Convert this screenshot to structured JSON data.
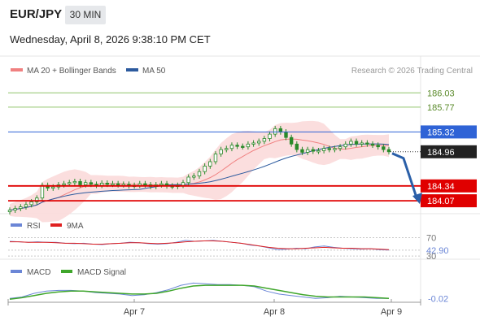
{
  "header": {
    "symbol": "EUR/JPY",
    "timeframe": "30 MIN",
    "datetime": "Wednesday, April 8, 2026 9:38:10 PM CET"
  },
  "legend": {
    "items": [
      {
        "label": "MA 20 + Bollinger Bands",
        "color": "#f08080"
      },
      {
        "label": "MA 50",
        "color": "#2c5a9e"
      }
    ],
    "credit": "Research © 2026 Trading Central"
  },
  "colors": {
    "resistance_green": "#8fc46a",
    "blue_level": "#2f63d6",
    "support_red": "#e00000",
    "candle": "#2a8a2a",
    "band_fill": "#fbdada",
    "arrow": "#2a5fa8",
    "rsi": "#6b86d6",
    "rsi_ma": "#e02020",
    "macd": "#6b86d6",
    "macd_signal": "#3fa62b"
  },
  "chart_data": [
    {
      "type": "candlestick",
      "panel": "price",
      "x_ticks": [
        "Apr 7",
        "Apr 8",
        "Apr 9"
      ],
      "levels": [
        {
          "value": 186.03,
          "label": "186.03",
          "color": "#8fc46a",
          "style": "line"
        },
        {
          "value": 185.77,
          "label": "185.77",
          "color": "#8fc46a",
          "style": "line"
        },
        {
          "value": 185.32,
          "label": "185.32",
          "color": "#2f63d6",
          "style": "box"
        },
        {
          "value": 184.96,
          "label": "184.96",
          "color": "#222222",
          "style": "box-dotted"
        },
        {
          "value": 184.34,
          "label": "184.34",
          "color": "#e00000",
          "style": "box"
        },
        {
          "value": 184.07,
          "label": "184.07",
          "color": "#e00000",
          "style": "box"
        }
      ],
      "close_series": [
        183.9,
        183.93,
        183.96,
        184.0,
        184.05,
        184.12,
        184.35,
        184.3,
        184.32,
        184.36,
        184.38,
        184.4,
        184.42,
        184.36,
        184.4,
        184.37,
        184.35,
        184.39,
        184.37,
        184.38,
        184.36,
        184.37,
        184.34,
        184.35,
        184.38,
        184.36,
        184.33,
        184.36,
        184.38,
        184.34,
        184.33,
        184.35,
        184.4,
        184.5,
        184.52,
        184.6,
        184.7,
        184.78,
        184.92,
        185.0,
        185.02,
        185.08,
        185.06,
        185.05,
        185.1,
        185.12,
        185.15,
        185.2,
        185.28,
        185.38,
        185.32,
        185.22,
        185.1,
        185.0,
        184.95,
        185.0,
        184.97,
        184.98,
        185.02,
        185.0,
        185.02,
        185.05,
        185.1,
        185.15,
        185.1,
        185.12,
        185.1,
        185.08,
        185.05,
        185.0,
        184.96
      ],
      "projection": [
        184.96,
        184.07
      ],
      "ylim": [
        183.85,
        186.3
      ]
    },
    {
      "type": "line",
      "panel": "rsi",
      "series": [
        {
          "name": "RSI",
          "values": [
            62,
            61,
            60,
            61,
            60,
            60,
            58,
            57,
            58,
            56,
            55,
            57,
            58,
            60,
            59,
            57,
            56,
            57,
            60,
            64,
            62,
            63,
            64,
            62,
            60,
            58,
            54,
            52,
            48,
            44,
            45,
            47,
            46,
            50,
            52,
            49,
            47,
            46,
            45,
            46,
            44,
            43
          ]
        },
        {
          "name": "9MA",
          "values": [
            61,
            61,
            60,
            60,
            60,
            59,
            58,
            58,
            57,
            56,
            56,
            57,
            58,
            59,
            59,
            58,
            57,
            58,
            59,
            61,
            62,
            63,
            63,
            62,
            60,
            58,
            55,
            52,
            49,
            47,
            46,
            46,
            47,
            48,
            49,
            48,
            47,
            47,
            46,
            46,
            45,
            44
          ]
        }
      ],
      "levels": [
        {
          "value": 70,
          "label": "70"
        },
        {
          "value": 42.9,
          "label": "42.90"
        },
        {
          "value": 30,
          "label": "30"
        }
      ],
      "ylim": [
        25,
        78
      ]
    },
    {
      "type": "line",
      "panel": "macd",
      "series": [
        {
          "name": "MACD",
          "values": [
            -0.02,
            0.0,
            0.05,
            0.08,
            0.09,
            0.09,
            0.08,
            0.06,
            0.05,
            0.04,
            0.02,
            0.03,
            0.06,
            0.1,
            0.16,
            0.19,
            0.18,
            0.17,
            0.17,
            0.16,
            0.14,
            0.08,
            0.04,
            0.02,
            0.0,
            -0.02,
            -0.01,
            0.01,
            0.0,
            -0.01,
            -0.02,
            -0.02
          ]
        },
        {
          "name": "MACD Signal",
          "values": [
            -0.03,
            -0.01,
            0.02,
            0.05,
            0.07,
            0.08,
            0.08,
            0.07,
            0.06,
            0.05,
            0.04,
            0.04,
            0.05,
            0.08,
            0.12,
            0.15,
            0.16,
            0.16,
            0.16,
            0.16,
            0.15,
            0.12,
            0.09,
            0.06,
            0.03,
            0.01,
            0.0,
            0.0,
            0.0,
            0.0,
            -0.01,
            -0.02
          ]
        }
      ],
      "levels": [
        {
          "value": -0.02,
          "label": "-0.02"
        }
      ],
      "ylim": [
        -0.05,
        0.25
      ]
    }
  ]
}
